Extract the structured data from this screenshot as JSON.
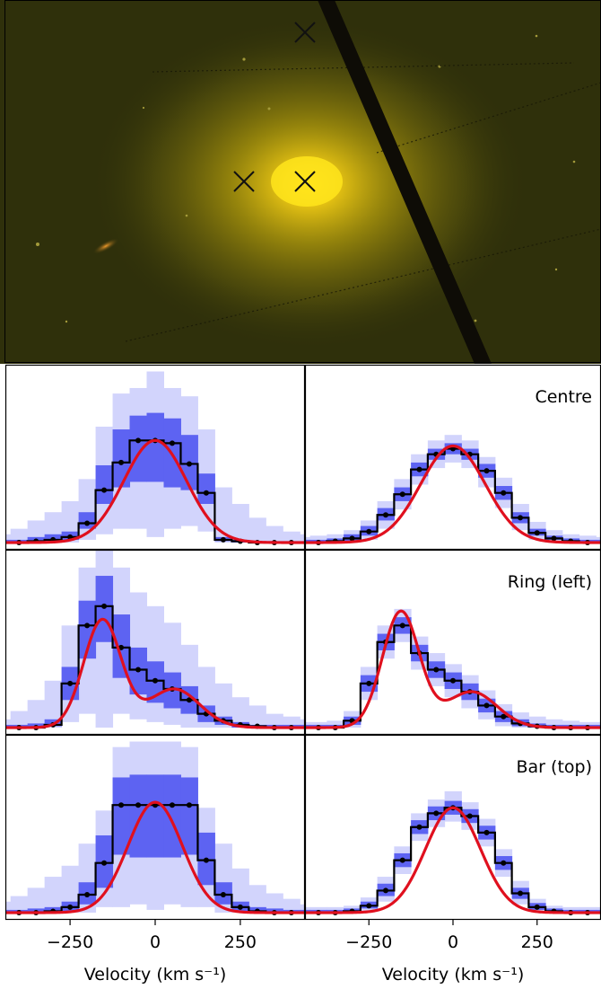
{
  "image": {
    "markers": [
      {
        "label": "centre"
      },
      {
        "label": "ring-left"
      },
      {
        "label": "bar-top"
      }
    ],
    "colors": {
      "background": "#2f300b",
      "core": "#ffe21a",
      "glow": "#a79a0c",
      "stripe": "#0e0c06",
      "marker": "#111111"
    }
  },
  "chart_data": {
    "type": "line",
    "x_unit": "km s-1",
    "xlim": [
      -440,
      440
    ],
    "xticks": [
      -250,
      0,
      250
    ],
    "xtick_labels": [
      "−250",
      "0",
      "250"
    ],
    "xlabel": "Velocity (km s⁻¹)",
    "bin_centres": [
      -450,
      -400,
      -350,
      -300,
      -250,
      -200,
      -150,
      -100,
      -50,
      0,
      50,
      100,
      150,
      200,
      250,
      300,
      350,
      400,
      450
    ],
    "colors": {
      "histogram": "#000000",
      "model": "#e0101e",
      "band_inner": "#5d63f2",
      "band_outer": "#d2d4fc",
      "grid": "#000000"
    },
    "rows": [
      {
        "label": "Centre",
        "panels": [
          {
            "ylim": [
              0,
              1.0
            ],
            "histogram": [
              0.0,
              0.0,
              0.01,
              0.02,
              0.04,
              0.14,
              0.38,
              0.58,
              0.74,
              0.74,
              0.72,
              0.57,
              0.36,
              0.02,
              0.01,
              0.0,
              0.0,
              0.0,
              0.0
            ],
            "band_inner_low": [
              0,
              0,
              0,
              0,
              0.02,
              0.1,
              0.28,
              0.4,
              0.44,
              0.44,
              0.4,
              0.38,
              0.28,
              0.01,
              0,
              0,
              0,
              0,
              0
            ],
            "band_inner_high": [
              0.02,
              0.02,
              0.04,
              0.06,
              0.08,
              0.22,
              0.56,
              0.82,
              0.92,
              0.94,
              0.9,
              0.78,
              0.5,
              0.04,
              0.02,
              0.01,
              0.01,
              0.01,
              0.01
            ],
            "band_outer_low": [
              0,
              0,
              0,
              0,
              0,
              0.02,
              0.06,
              0.1,
              0.1,
              0.04,
              0.1,
              0.12,
              0.08,
              0.0,
              0,
              0,
              0,
              0,
              0
            ],
            "band_outer_high": [
              0.06,
              0.1,
              0.16,
              0.22,
              0.3,
              0.46,
              0.84,
              1.08,
              1.12,
              1.24,
              1.12,
              1.06,
              0.82,
              0.4,
              0.28,
              0.18,
              0.12,
              0.08,
              0.06
            ],
            "model": [
              {
                "amp": 0.74,
                "mu": 0,
                "sigma": 92
              }
            ]
          },
          {
            "ylim": [
              0,
              1.0
            ],
            "histogram": [
              0.0,
              0.0,
              0.01,
              0.03,
              0.08,
              0.2,
              0.35,
              0.53,
              0.64,
              0.68,
              0.64,
              0.52,
              0.36,
              0.18,
              0.07,
              0.03,
              0.01,
              0.0,
              0.0
            ],
            "band_inner_low": [
              0,
              0,
              0,
              0.01,
              0.05,
              0.16,
              0.3,
              0.48,
              0.6,
              0.64,
              0.6,
              0.47,
              0.31,
              0.14,
              0.05,
              0.02,
              0,
              0,
              0
            ],
            "band_inner_high": [
              0.02,
              0.02,
              0.03,
              0.06,
              0.12,
              0.25,
              0.4,
              0.58,
              0.68,
              0.72,
              0.68,
              0.57,
              0.41,
              0.22,
              0.1,
              0.05,
              0.03,
              0.02,
              0.02
            ],
            "band_outer_low": [
              0,
              0,
              0,
              0,
              0.02,
              0.1,
              0.24,
              0.42,
              0.54,
              0.58,
              0.54,
              0.4,
              0.25,
              0.09,
              0.02,
              0,
              0,
              0,
              0
            ],
            "band_outer_high": [
              0.04,
              0.05,
              0.06,
              0.09,
              0.16,
              0.3,
              0.46,
              0.64,
              0.74,
              0.78,
              0.74,
              0.62,
              0.47,
              0.28,
              0.15,
              0.09,
              0.06,
              0.05,
              0.04
            ],
            "model": [
              {
                "amp": 0.7,
                "mu": 0,
                "sigma": 96
              }
            ]
          }
        ]
      },
      {
        "label": "Ring (left)",
        "panels": [
          {
            "ylim": [
              0,
              1.0
            ],
            "histogram": [
              0.0,
              0.0,
              0.0,
              0.02,
              0.32,
              0.74,
              0.88,
              0.58,
              0.42,
              0.34,
              0.28,
              0.2,
              0.1,
              0.05,
              0.02,
              0.01,
              0.0,
              0.0,
              0.0
            ],
            "band_inner_low": [
              0,
              0,
              0,
              0.01,
              0.2,
              0.5,
              0.62,
              0.36,
              0.24,
              0.18,
              0.14,
              0.1,
              0.04,
              0.02,
              0,
              0,
              0,
              0,
              0
            ],
            "band_inner_high": [
              0.02,
              0.02,
              0.03,
              0.06,
              0.44,
              0.92,
              1.1,
              0.82,
              0.58,
              0.48,
              0.4,
              0.3,
              0.16,
              0.08,
              0.04,
              0.02,
              0.02,
              0.02,
              0.02
            ],
            "band_outer_low": [
              0,
              0,
              0,
              0,
              0.04,
              0.1,
              0.0,
              0.1,
              0.06,
              0.04,
              0.02,
              0.0,
              0,
              0,
              0,
              0,
              0,
              0,
              0
            ],
            "band_outer_high": [
              0.06,
              0.12,
              0.2,
              0.34,
              0.74,
              1.16,
              1.3,
              1.16,
              0.98,
              0.88,
              0.76,
              0.6,
              0.44,
              0.32,
              0.22,
              0.16,
              0.1,
              0.08,
              0.06
            ],
            "model": [
              {
                "amp": 0.78,
                "mu": -155,
                "sigma": 55
              },
              {
                "amp": 0.28,
                "mu": 55,
                "sigma": 75
              }
            ]
          },
          {
            "ylim": [
              0,
              1.0
            ],
            "histogram": [
              0.0,
              0.0,
              0.0,
              0.05,
              0.32,
              0.62,
              0.74,
              0.54,
              0.42,
              0.34,
              0.26,
              0.16,
              0.08,
              0.03,
              0.01,
              0.0,
              0.0,
              0.0,
              0.0
            ],
            "band_inner_low": [
              0,
              0,
              0,
              0.02,
              0.26,
              0.56,
              0.68,
              0.48,
              0.36,
              0.28,
              0.2,
              0.11,
              0.04,
              0.01,
              0,
              0,
              0,
              0,
              0
            ],
            "band_inner_high": [
              0.02,
              0.02,
              0.02,
              0.08,
              0.38,
              0.68,
              0.8,
              0.6,
              0.48,
              0.4,
              0.32,
              0.21,
              0.12,
              0.06,
              0.03,
              0.02,
              0.02,
              0.02,
              0.02
            ],
            "band_outer_low": [
              0,
              0,
              0,
              0,
              0.2,
              0.5,
              0.62,
              0.42,
              0.3,
              0.22,
              0.14,
              0.06,
              0.01,
              0,
              0,
              0,
              0,
              0,
              0
            ],
            "band_outer_high": [
              0.04,
              0.04,
              0.05,
              0.12,
              0.44,
              0.74,
              0.86,
              0.66,
              0.54,
              0.46,
              0.38,
              0.27,
              0.17,
              0.11,
              0.08,
              0.06,
              0.05,
              0.04,
              0.04
            ],
            "model": [
              {
                "amp": 0.84,
                "mu": -155,
                "sigma": 55
              },
              {
                "amp": 0.26,
                "mu": 55,
                "sigma": 75
              }
            ]
          }
        ]
      },
      {
        "label": "Bar (top)",
        "panels": [
          {
            "ylim": [
              0,
              1.0
            ],
            "histogram": [
              0.0,
              0.0,
              0.0,
              0.01,
              0.04,
              0.13,
              0.36,
              0.78,
              0.78,
              0.78,
              0.78,
              0.78,
              0.38,
              0.13,
              0.04,
              0.01,
              0.0,
              0.0,
              0.0
            ],
            "band_inner_low": [
              0,
              0,
              0,
              0,
              0.01,
              0.06,
              0.18,
              0.42,
              0.4,
              0.4,
              0.4,
              0.42,
              0.2,
              0.06,
              0.01,
              0,
              0,
              0,
              0
            ],
            "band_inner_high": [
              0.02,
              0.02,
              0.03,
              0.04,
              0.08,
              0.22,
              0.56,
              0.98,
              1.0,
              1.0,
              1.0,
              0.98,
              0.58,
              0.22,
              0.08,
              0.04,
              0.03,
              0.02,
              0.02
            ],
            "band_outer_low": [
              0,
              0,
              0,
              0,
              0,
              0.0,
              0.04,
              0.04,
              0.06,
              0.02,
              0.06,
              0.04,
              0.04,
              0,
              0,
              0,
              0,
              0,
              0
            ],
            "band_outer_high": [
              0.08,
              0.12,
              0.18,
              0.26,
              0.34,
              0.5,
              0.74,
              1.2,
              1.24,
              1.24,
              1.24,
              1.2,
              0.76,
              0.5,
              0.32,
              0.2,
              0.14,
              0.1,
              0.06
            ],
            "model": [
              {
                "amp": 0.8,
                "mu": 0,
                "sigma": 80
              }
            ]
          },
          {
            "ylim": [
              0,
              1.0
            ],
            "histogram": [
              0.0,
              0.0,
              0.0,
              0.01,
              0.05,
              0.16,
              0.38,
              0.62,
              0.72,
              0.76,
              0.7,
              0.58,
              0.36,
              0.14,
              0.04,
              0.01,
              0.0,
              0.0,
              0.0
            ],
            "band_inner_low": [
              0,
              0,
              0,
              0,
              0.03,
              0.12,
              0.33,
              0.57,
              0.67,
              0.71,
              0.65,
              0.53,
              0.31,
              0.1,
              0.02,
              0,
              0,
              0,
              0
            ],
            "band_inner_high": [
              0.02,
              0.02,
              0.02,
              0.03,
              0.08,
              0.21,
              0.43,
              0.67,
              0.77,
              0.81,
              0.75,
              0.63,
              0.41,
              0.18,
              0.07,
              0.03,
              0.02,
              0.02,
              0.02
            ],
            "band_outer_low": [
              0,
              0,
              0,
              0,
              0.01,
              0.08,
              0.28,
              0.52,
              0.62,
              0.66,
              0.6,
              0.48,
              0.26,
              0.06,
              0.01,
              0,
              0,
              0,
              0
            ],
            "band_outer_high": [
              0.04,
              0.04,
              0.04,
              0.05,
              0.11,
              0.26,
              0.48,
              0.72,
              0.82,
              0.88,
              0.8,
              0.68,
              0.46,
              0.23,
              0.1,
              0.05,
              0.04,
              0.04,
              0.04
            ],
            "model": [
              {
                "amp": 0.76,
                "mu": 0,
                "sigma": 82
              }
            ]
          }
        ]
      }
    ]
  }
}
